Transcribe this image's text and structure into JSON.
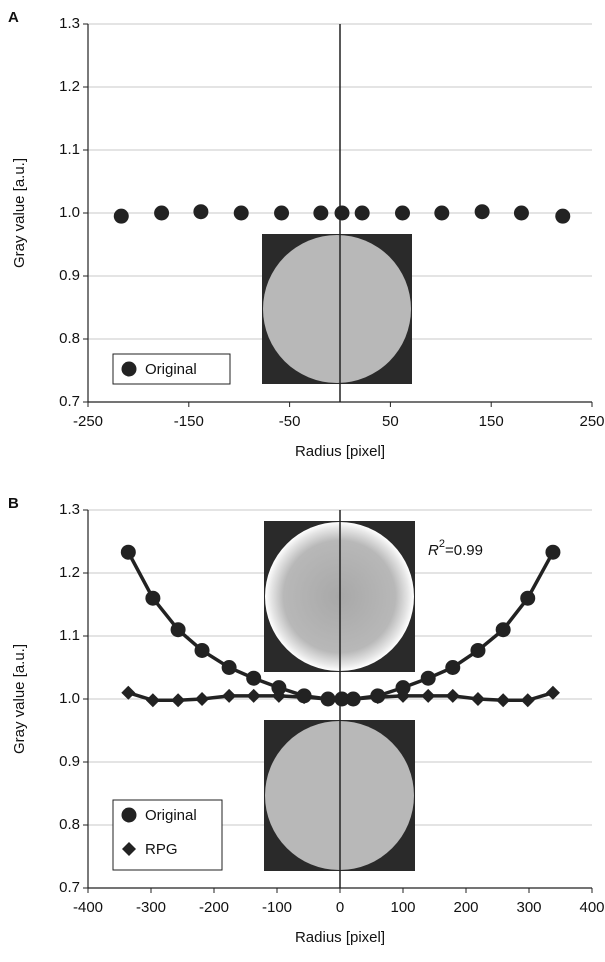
{
  "chart_data": [
    {
      "type": "scatter",
      "panel": "A",
      "xlabel": "Radius [pixel]",
      "ylabel": "Gray value [a.u.]",
      "xlim": [
        -250,
        250
      ],
      "xticks": [
        -250,
        -150,
        -50,
        50,
        150,
        250
      ],
      "ylim": [
        0.7,
        1.3
      ],
      "yticks": [
        0.7,
        0.8,
        0.9,
        {
          "value": 1,
          "label": "1.0"
        },
        1.1,
        1.2,
        1.3
      ],
      "grid": true,
      "legend": "lower left",
      "series": [
        {
          "name": "Original",
          "marker": "circle",
          "color": "#222222",
          "x": [
            -217,
            -177,
            -138,
            -98,
            -58,
            -19,
            2,
            22,
            62,
            101,
            141,
            180,
            221
          ],
          "values": [
            0.995,
            1.0,
            1.002,
            1.0,
            1.0,
            1.0,
            1.0,
            1.0,
            1.0,
            1.0,
            1.002,
            1.0,
            0.995
          ]
        }
      ]
    },
    {
      "type": "scatter",
      "panel": "B",
      "xlabel": "Radius [pixel]",
      "ylabel": "Gray value [a.u.]",
      "xlim": [
        -400,
        400
      ],
      "xticks": [
        -400,
        -300,
        -200,
        -100,
        0,
        100,
        200,
        300,
        400
      ],
      "ylim": [
        0.7,
        1.3
      ],
      "yticks": [
        0.7,
        0.8,
        0.9,
        {
          "value": 1,
          "label": "1.0"
        },
        1.1,
        1.2,
        1.3
      ],
      "grid": true,
      "legend": "lower left",
      "annotation": {
        "text": "R",
        "sup": "2",
        "rest": "=0.99"
      },
      "series": [
        {
          "name": "Original",
          "marker": "circle",
          "color": "#222222",
          "x": [
            -336,
            -297,
            -257,
            -219,
            -176,
            -137,
            -97,
            -57,
            -19,
            3,
            21,
            60,
            100,
            140,
            179,
            219,
            259,
            298,
            338
          ],
          "values": [
            1.233,
            1.16,
            1.11,
            1.077,
            1.05,
            1.033,
            1.018,
            1.005,
            1.0,
            1.0,
            1.0,
            1.005,
            1.018,
            1.033,
            1.05,
            1.077,
            1.11,
            1.16,
            1.233
          ]
        },
        {
          "name": "RPG",
          "marker": "diamond",
          "color": "#222222",
          "x": [
            -336,
            -297,
            -257,
            -219,
            -176,
            -137,
            -97,
            -57,
            -19,
            3,
            21,
            60,
            100,
            140,
            179,
            219,
            259,
            298,
            338
          ],
          "values": [
            1.01,
            0.998,
            0.998,
            1.0,
            1.005,
            1.005,
            1.005,
            1.003,
            1.0,
            1.0,
            1.0,
            1.003,
            1.005,
            1.005,
            1.005,
            1.0,
            0.998,
            0.998,
            1.01
          ]
        }
      ]
    }
  ]
}
